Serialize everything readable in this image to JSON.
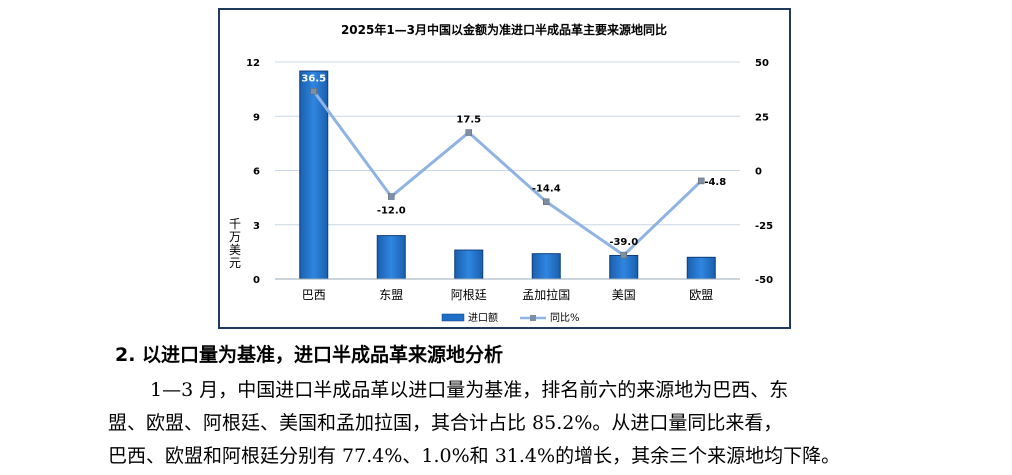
{
  "chart_data": {
    "type": "bar",
    "title": "2025年1—3月中国以金额为准进口半成品革主要来源地同比",
    "ylabel": "千万美元",
    "categories": [
      "巴西",
      "东盟",
      "阿根廷",
      "孟加拉国",
      "美国",
      "欧盟"
    ],
    "ylim": [
      0,
      12
    ],
    "yticks": [
      0,
      3,
      6,
      9,
      12
    ],
    "y2lim": [
      -50,
      50
    ],
    "y2ticks": [
      -50,
      -25,
      0,
      25,
      50
    ],
    "series": [
      {
        "name": "进口额",
        "kind": "bar",
        "axis": "left",
        "values": [
          11.5,
          2.4,
          1.6,
          1.4,
          1.3,
          1.2
        ],
        "color": "#1f6fc5"
      },
      {
        "name": "同比%",
        "kind": "line",
        "axis": "right",
        "values": [
          36.5,
          -12.0,
          17.5,
          -14.4,
          -39.0,
          -4.8
        ],
        "labels": [
          "36.5",
          "-12.0",
          "17.5",
          "-14.4",
          "-39.0",
          "-4.8"
        ],
        "color": "#8fb3e3"
      }
    ],
    "grid": true,
    "legend": "bottom"
  },
  "section": {
    "heading": "2. 以进口量为基准，进口半成品革来源地分析",
    "lines": [
      "1—3 月，中国进口半成品革以进口量为基准，排名前六的来源地为巴西、东",
      "盟、欧盟、阿根廷、美国和孟加拉国，其合计占比  85.2%。从进口量同比来看，",
      "巴西、欧盟和阿根廷分别有 77.4%、1.0%和 31.4%的增长，其余三个来源地均下降。"
    ]
  }
}
